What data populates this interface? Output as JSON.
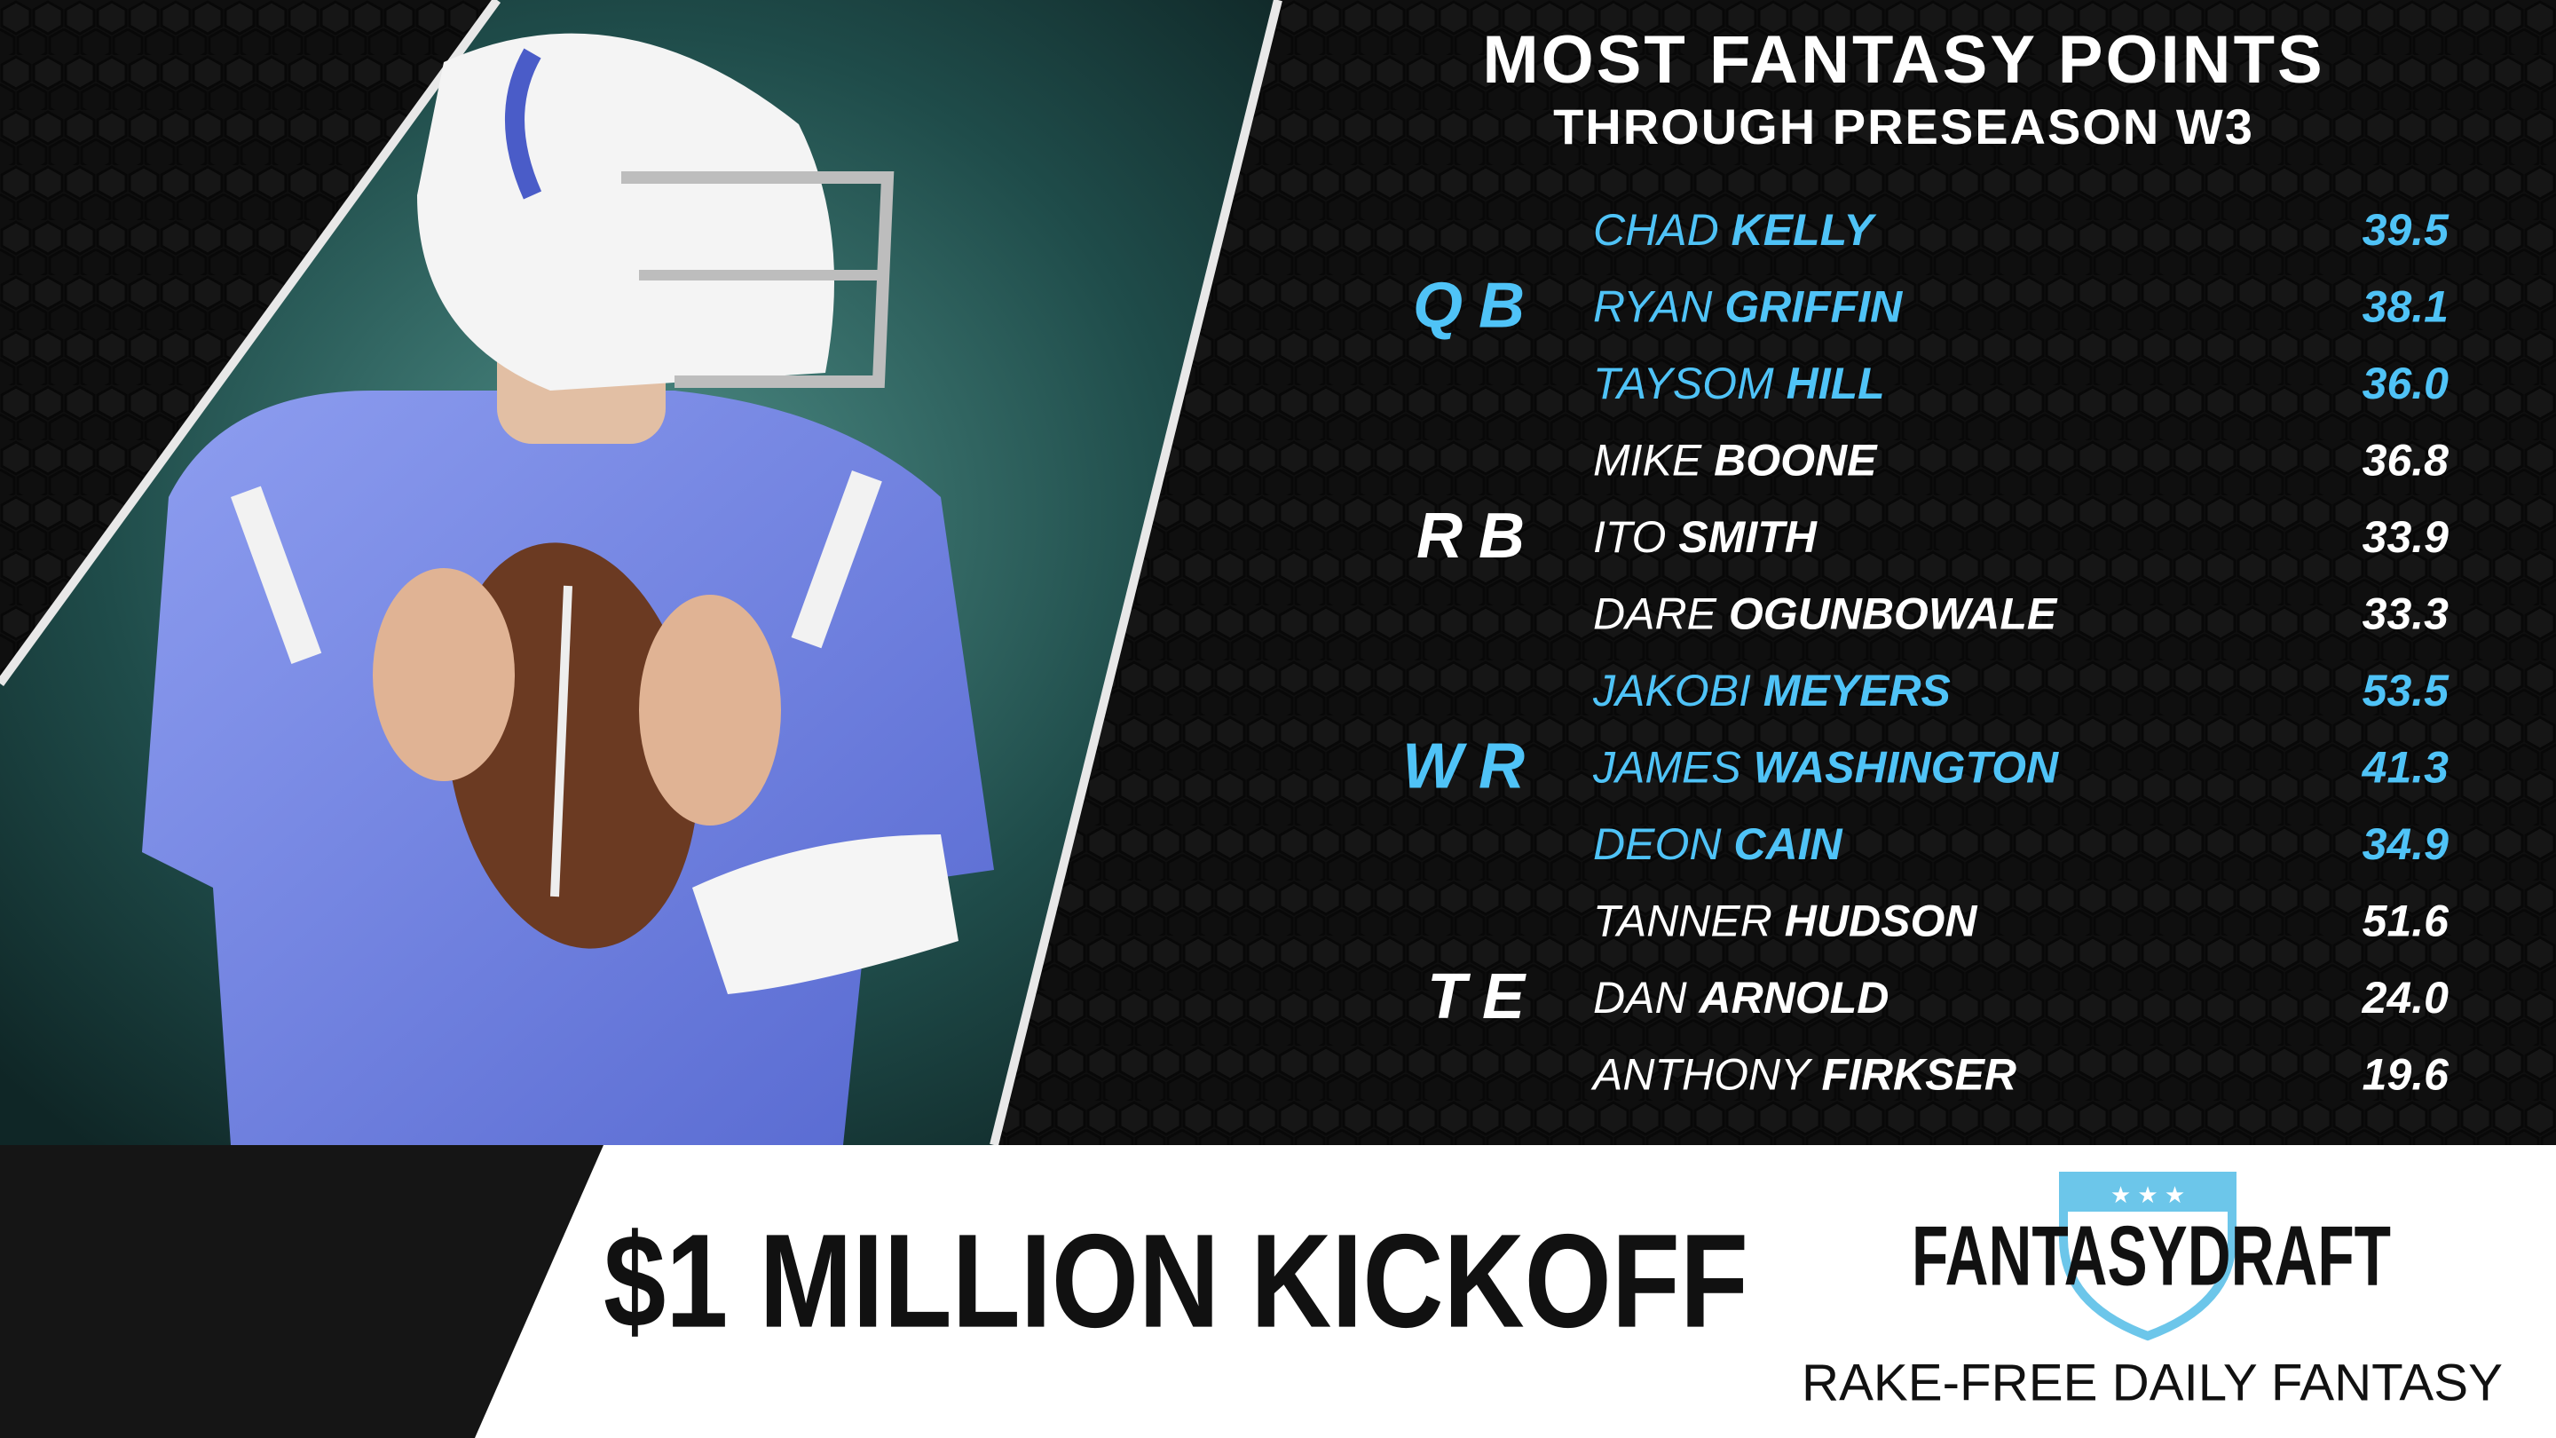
{
  "header": {
    "title": "MOST FANTASY POINTS",
    "subtitle": "THROUGH PRESEASON W3"
  },
  "groups": [
    {
      "position": "QB",
      "color": "#4fc3f7",
      "players": [
        {
          "first": "CHAD",
          "last": "KELLY",
          "points": "39.5"
        },
        {
          "first": "RYAN",
          "last": "GRIFFIN",
          "points": "38.1"
        },
        {
          "first": "TAYSOM",
          "last": "HILL",
          "points": "36.0"
        }
      ]
    },
    {
      "position": "RB",
      "color": "#ffffff",
      "players": [
        {
          "first": "MIKE",
          "last": "BOONE",
          "points": "36.8"
        },
        {
          "first": "ITO",
          "last": "SMITH",
          "points": "33.9"
        },
        {
          "first": "DARE",
          "last": "OGUNBOWALE",
          "points": "33.3"
        }
      ]
    },
    {
      "position": "WR",
      "color": "#4fc3f7",
      "players": [
        {
          "first": "JAKOBI",
          "last": "MEYERS",
          "points": "53.5"
        },
        {
          "first": "JAMES",
          "last": "WASHINGTON",
          "points": "41.3"
        },
        {
          "first": "DEON",
          "last": "CAIN",
          "points": "34.9"
        }
      ]
    },
    {
      "position": "TE",
      "color": "#ffffff",
      "players": [
        {
          "first": "TANNER",
          "last": "HUDSON",
          "points": "51.6"
        },
        {
          "first": "DAN",
          "last": "ARNOLD",
          "points": "24.0"
        },
        {
          "first": "ANTHONY",
          "last": "FIRKSER",
          "points": "19.6"
        }
      ]
    }
  ],
  "banner": {
    "headline": "$1 MILLION KICKOFF",
    "brand": "FANTASYDRAFT",
    "tagline": "RAKE-FREE DAILY FANTASY"
  }
}
